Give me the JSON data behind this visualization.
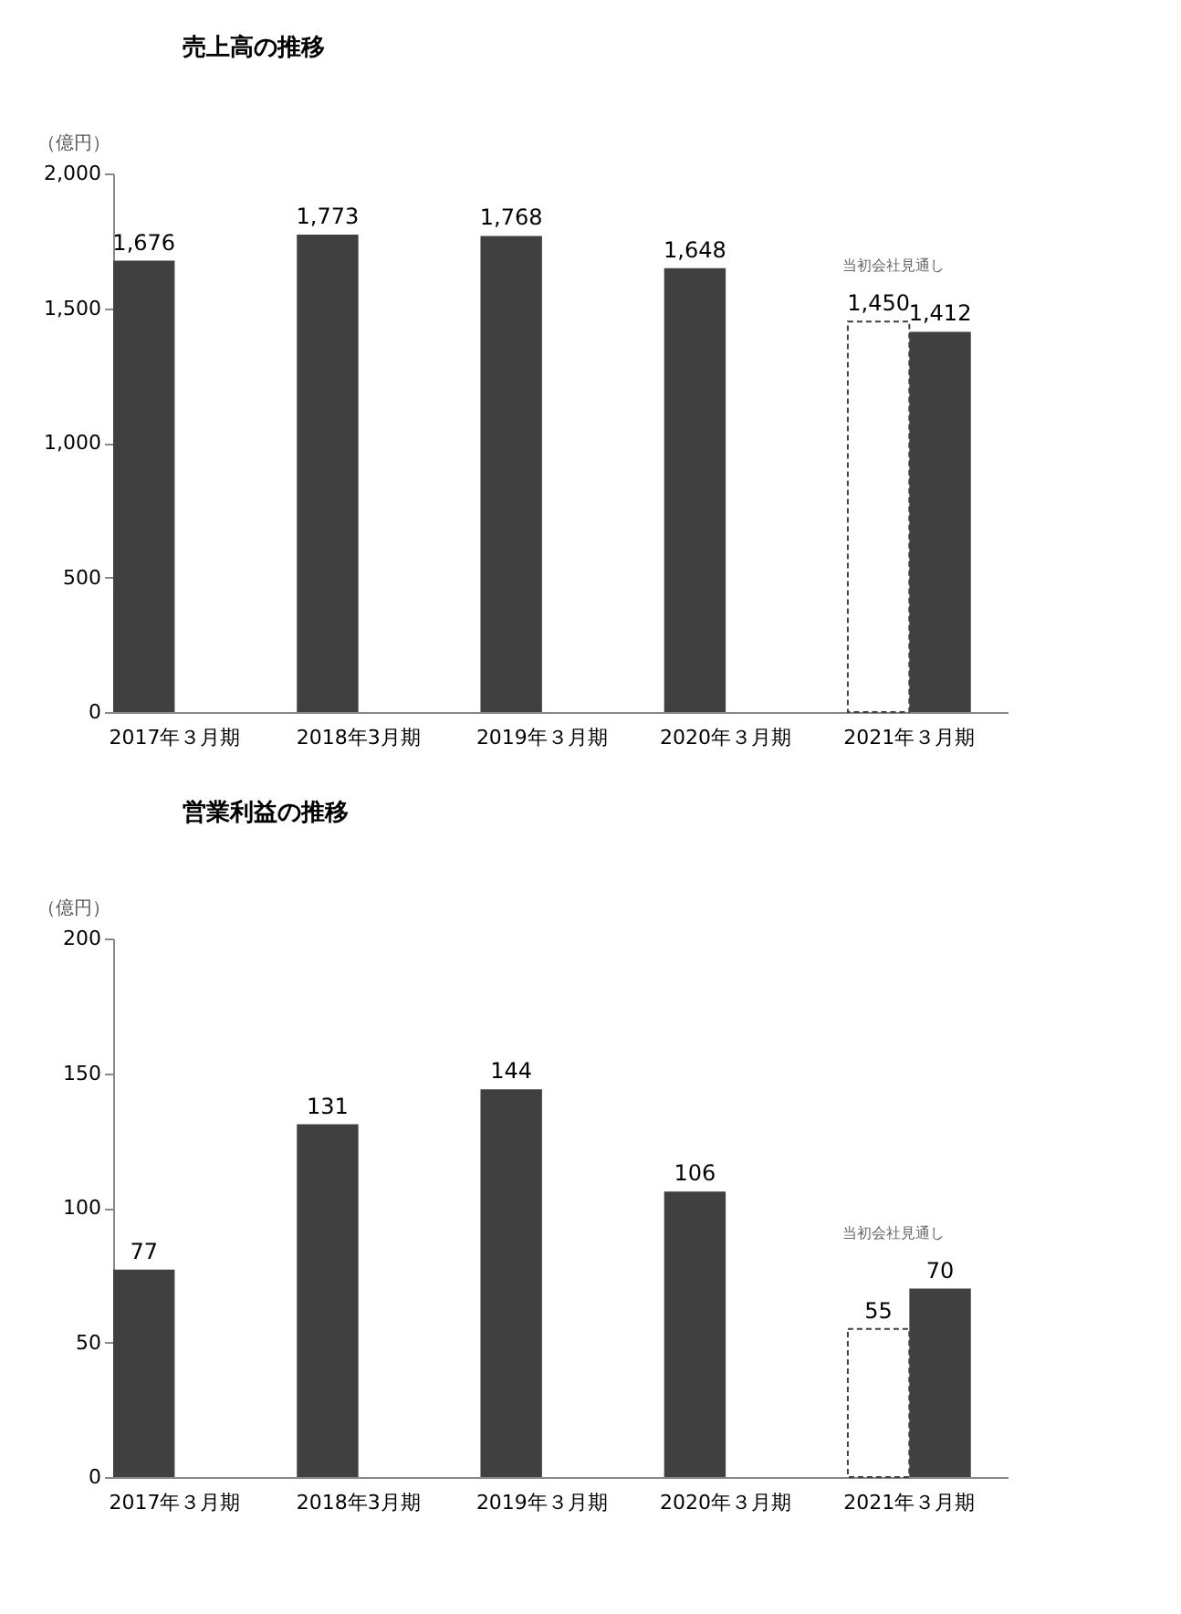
{
  "chart_data": [
    {
      "type": "bar",
      "title": "売上高の推移",
      "ylabel": "（億円）",
      "categories": [
        "2017年３月期",
        "2018年3月期",
        "2019年３月期",
        "2020年３月期",
        "2021年３月期"
      ],
      "series": [
        {
          "color": "#404040",
          "values": [
            1676,
            1773,
            1768,
            1648,
            null
          ],
          "value_labels": [
            "1,676",
            "1,773",
            "1,768",
            "1,648",
            null
          ]
        },
        {
          "color": "#ffffff",
          "line_style": "dashed",
          "values": [
            null,
            null,
            null,
            null,
            1450
          ],
          "value_labels": [
            null,
            null,
            null,
            null,
            "1,450"
          ]
        },
        {
          "color": "#404040",
          "values": [
            null,
            null,
            null,
            null,
            1412
          ],
          "value_labels": [
            null,
            null,
            null,
            null,
            "1,412"
          ]
        }
      ],
      "annotations": [
        "当初会社見通し"
      ],
      "ylim": [
        0,
        2000
      ],
      "yticks": [
        0,
        500,
        {
          "value": 1000,
          "label": "1,000"
        },
        {
          "value": 1500,
          "label": "1,500"
        },
        {
          "value": 2000,
          "label": "2,000"
        }
      ],
      "grid": false
    },
    {
      "type": "bar",
      "title": "営業利益の推移",
      "ylabel": "（億円）",
      "categories": [
        "2017年３月期",
        "2018年3月期",
        "2019年３月期",
        "2020年３月期",
        "2021年３月期"
      ],
      "series": [
        {
          "color": "#404040",
          "values": [
            77,
            131,
            144,
            106,
            null
          ],
          "value_labels": [
            "77",
            "131",
            "144",
            "106",
            null
          ]
        },
        {
          "color": "#ffffff",
          "line_style": "dashed",
          "values": [
            null,
            null,
            null,
            null,
            55
          ],
          "value_labels": [
            null,
            null,
            null,
            null,
            "55"
          ]
        },
        {
          "color": "#404040",
          "values": [
            null,
            null,
            null,
            null,
            70
          ],
          "value_labels": [
            null,
            null,
            null,
            null,
            "70"
          ]
        }
      ],
      "annotations": [
        "当初会社見通し"
      ],
      "ylim": [
        0,
        200
      ],
      "yticks": [
        0,
        50,
        100,
        150,
        200
      ],
      "grid": false
    }
  ]
}
